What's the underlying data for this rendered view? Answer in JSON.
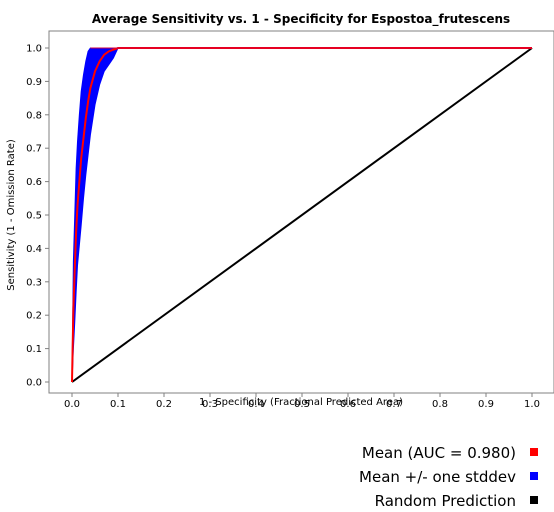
{
  "chart_data": {
    "type": "line",
    "title": "Average Sensitivity vs. 1 - Specificity for Espostoa_frutescens",
    "xlabel": "1 - Specificity (Fractional Predicted Area)",
    "ylabel": "Sensitivity (1 - Omission Rate)",
    "xlim": [
      0,
      1
    ],
    "ylim": [
      0,
      1
    ],
    "x_ticks": [
      "0.0",
      "0.1",
      "0.2",
      "0.3",
      "0.4",
      "0.5",
      "0.6",
      "0.7",
      "0.8",
      "0.9",
      "1.0"
    ],
    "y_ticks": [
      "0.0",
      "0.1",
      "0.2",
      "0.3",
      "0.4",
      "0.5",
      "0.6",
      "0.7",
      "0.8",
      "0.9",
      "1.0"
    ],
    "grid": false,
    "legend_position": "bottom-right",
    "series": [
      {
        "name": "Mean (AUC = 0.980)",
        "color": "#ff0000",
        "x": [
          0.0,
          0.003,
          0.006,
          0.009,
          0.012,
          0.016,
          0.02,
          0.025,
          0.03,
          0.035,
          0.04,
          0.05,
          0.06,
          0.07,
          0.08,
          0.09,
          0.1,
          1.0
        ],
        "y": [
          0.0,
          0.22,
          0.34,
          0.45,
          0.53,
          0.6,
          0.67,
          0.73,
          0.79,
          0.84,
          0.88,
          0.93,
          0.96,
          0.98,
          0.99,
          0.995,
          1.0,
          1.0
        ]
      },
      {
        "name": "Mean +/- one stddev",
        "color": "#0000ff",
        "upper_x": [
          0.0,
          0.003,
          0.006,
          0.009,
          0.012,
          0.016,
          0.02,
          0.025,
          0.03,
          0.035,
          0.04,
          0.05,
          0.06,
          0.07,
          0.08,
          0.09,
          0.1,
          1.0
        ],
        "upper_y": [
          0.0,
          0.36,
          0.5,
          0.64,
          0.72,
          0.8,
          0.87,
          0.92,
          0.96,
          0.99,
          1.0,
          1.0,
          1.0,
          1.0,
          1.0,
          1.0,
          1.0,
          1.0
        ],
        "lower_x": [
          0.0,
          0.003,
          0.006,
          0.009,
          0.012,
          0.016,
          0.02,
          0.025,
          0.03,
          0.035,
          0.04,
          0.05,
          0.06,
          0.07,
          0.08,
          0.09,
          0.1,
          1.0
        ],
        "lower_y": [
          0.0,
          0.1,
          0.18,
          0.27,
          0.35,
          0.41,
          0.47,
          0.55,
          0.62,
          0.68,
          0.74,
          0.83,
          0.89,
          0.93,
          0.95,
          0.97,
          1.0,
          1.0
        ]
      },
      {
        "name": "Random Prediction",
        "color": "#000000",
        "x": [
          0.0,
          1.0
        ],
        "y": [
          0.0,
          1.0
        ]
      }
    ]
  }
}
